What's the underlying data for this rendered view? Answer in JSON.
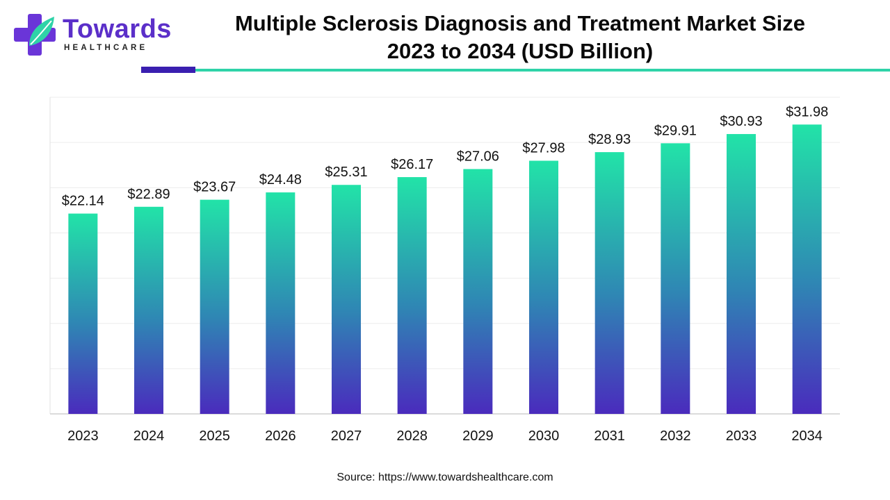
{
  "brand": {
    "name": "Towards",
    "subtitle": "HEALTHCARE",
    "logo_icon": "medical-cross-leaf-icon",
    "colors": {
      "primary": "#5b2fc9",
      "accent": "#2fd3a8",
      "dark_accent": "#3a1fb0"
    }
  },
  "header": {
    "title_line1": "Multiple Sclerosis Diagnosis and Treatment Market Size",
    "title_line2": "2023 to 2034 (USD Billion)"
  },
  "chart_data": {
    "type": "bar",
    "categories": [
      "2023",
      "2024",
      "2025",
      "2026",
      "2027",
      "2028",
      "2029",
      "2030",
      "2031",
      "2032",
      "2033",
      "2034"
    ],
    "values": [
      22.14,
      22.89,
      23.67,
      24.48,
      25.31,
      26.17,
      27.06,
      27.98,
      28.93,
      29.91,
      30.93,
      31.98
    ],
    "data_labels": [
      "$22.14",
      "$22.89",
      "$23.67",
      "$24.48",
      "$25.31",
      "$26.17",
      "$27.06",
      "$27.98",
      "$28.93",
      "$29.91",
      "$30.93",
      "$31.98"
    ],
    "ylim": [
      0,
      35
    ],
    "grid": true,
    "legend": "none",
    "bar_gradient": {
      "top": "#22e3a8",
      "bottom": "#4a2bbd"
    }
  },
  "footer": {
    "source": "Source: https://www.towardshealthcare.com"
  }
}
